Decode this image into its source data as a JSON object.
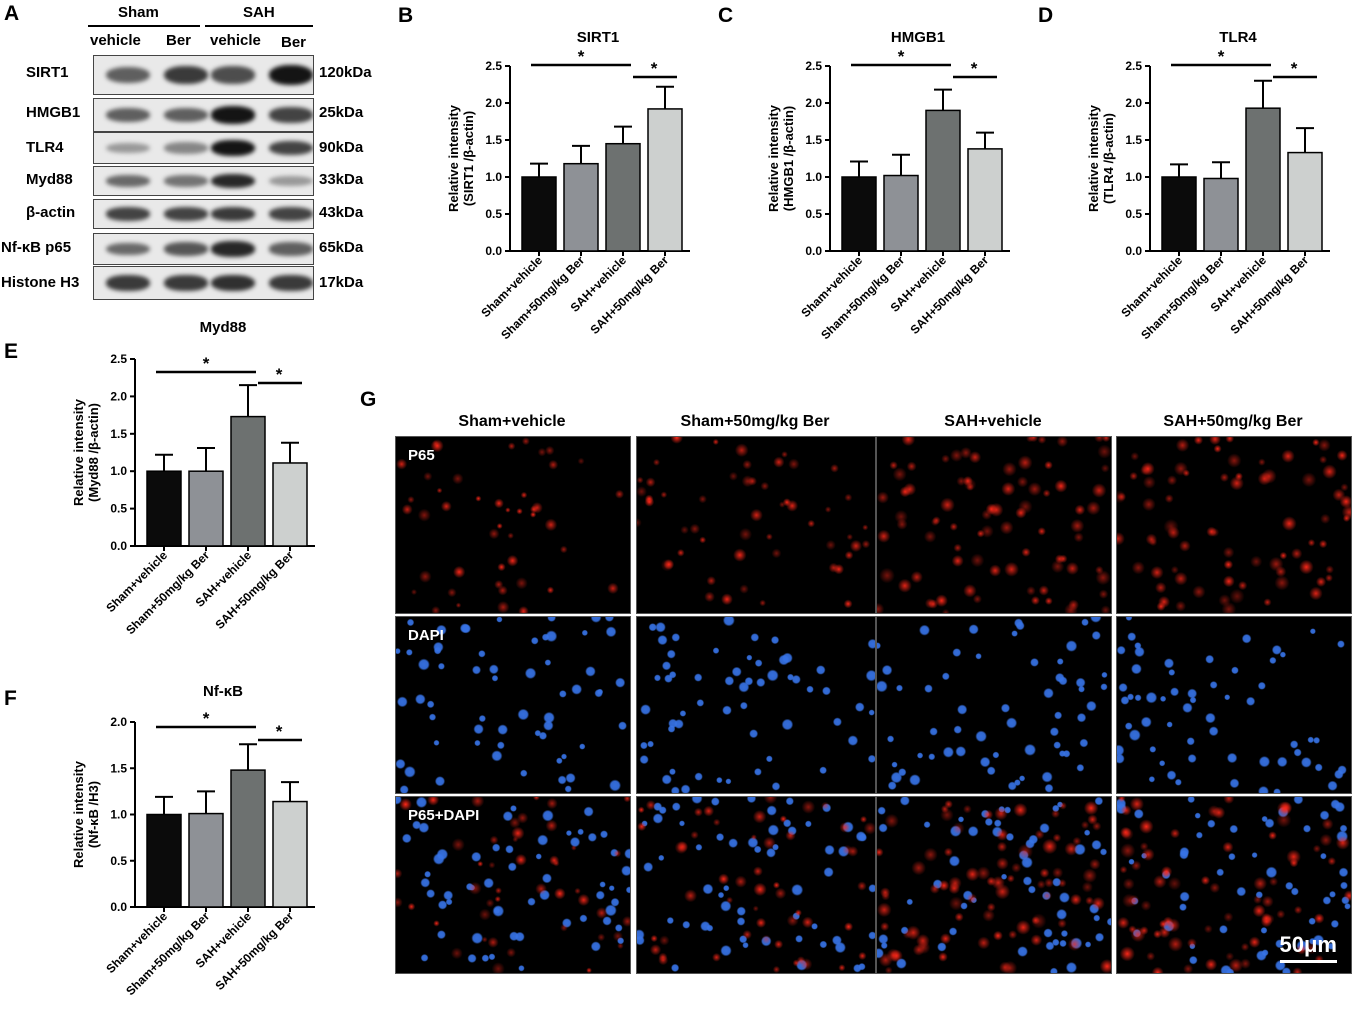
{
  "panel_letters": {
    "A": "A",
    "B": "B",
    "C": "C",
    "D": "D",
    "E": "E",
    "F": "F",
    "G": "G"
  },
  "western_blot": {
    "groups": [
      "Sham",
      "SAH"
    ],
    "lanes": [
      "vehicle",
      "Ber",
      "vehicle",
      "Ber"
    ],
    "rows": [
      {
        "protein": "SIRT1",
        "kda": "120kDa",
        "intensity": [
          0.55,
          0.75,
          0.65,
          0.95
        ]
      },
      {
        "protein": "HMGB1",
        "kda": "25kDa",
        "intensity": [
          0.55,
          0.55,
          0.95,
          0.7
        ]
      },
      {
        "protein": "TLR4",
        "kda": "90kDa",
        "intensity": [
          0.25,
          0.35,
          0.95,
          0.7
        ]
      },
      {
        "protein": "Myd88",
        "kda": "33kDa",
        "intensity": [
          0.5,
          0.45,
          0.85,
          0.25
        ]
      },
      {
        "protein": "β-actin",
        "kda": "43kDa",
        "intensity": [
          0.7,
          0.7,
          0.75,
          0.7
        ]
      },
      {
        "protein": "Nf-κB p65",
        "kda": "65kDa",
        "intensity": [
          0.5,
          0.6,
          0.85,
          0.55
        ]
      },
      {
        "protein": "Histone H3",
        "kda": "17kDa",
        "intensity": [
          0.75,
          0.75,
          0.8,
          0.75
        ]
      }
    ]
  },
  "chart_data": [
    {
      "id": "B",
      "type": "bar",
      "title": "SIRT1",
      "ylabel_line1": "Relative intensity",
      "ylabel_line2": "(SIRT1 /β-actin)",
      "categories": [
        "Sham+vehicle",
        "Sham+50mg/kg Ber",
        "SAH+vehicle",
        "SAH+50mg/kg Ber"
      ],
      "values": [
        1.0,
        1.18,
        1.45,
        1.92
      ],
      "errors": [
        0.18,
        0.24,
        0.23,
        0.3
      ],
      "ylim": [
        0,
        2.5
      ],
      "yticks": [
        "0.0",
        "0.5",
        "1.0",
        "1.5",
        "2.0",
        "2.5"
      ],
      "significance": "*"
    },
    {
      "id": "C",
      "type": "bar",
      "title": "HMGB1",
      "ylabel_line1": "Relative intensity",
      "ylabel_line2": "(HMGB1 /β-actin)",
      "categories": [
        "Sham+vehicle",
        "Sham+50mg/kg Ber",
        "SAH+vehicle",
        "SAH+50mg/kg Ber"
      ],
      "values": [
        1.0,
        1.02,
        1.9,
        1.38
      ],
      "errors": [
        0.21,
        0.28,
        0.28,
        0.22
      ],
      "ylim": [
        0,
        2.5
      ],
      "yticks": [
        "0.0",
        "0.5",
        "1.0",
        "1.5",
        "2.0",
        "2.5"
      ],
      "significance": "*"
    },
    {
      "id": "D",
      "type": "bar",
      "title": "TLR4",
      "ylabel_line1": "Relative intensity",
      "ylabel_line2": "(TLR4 /β-actin)",
      "categories": [
        "Sham+vehicle",
        "Sham+50mg/kg Ber",
        "SAH+vehicle",
        "SAH+50mg/kg Ber"
      ],
      "values": [
        1.0,
        0.98,
        1.93,
        1.33
      ],
      "errors": [
        0.17,
        0.22,
        0.37,
        0.33
      ],
      "ylim": [
        0,
        2.5
      ],
      "yticks": [
        "0.0",
        "0.5",
        "1.0",
        "1.5",
        "2.0",
        "2.5"
      ],
      "significance": "*"
    },
    {
      "id": "E",
      "type": "bar",
      "title": "Myd88",
      "ylabel_line1": "Relative intensity",
      "ylabel_line2": "(Myd88 /β-actin)",
      "categories": [
        "Sham+vehicle",
        "Sham+50mg/kg Ber",
        "SAH+vehicle",
        "SAH+50mg/kg Ber"
      ],
      "values": [
        1.0,
        1.0,
        1.73,
        1.11
      ],
      "errors": [
        0.22,
        0.31,
        0.42,
        0.27
      ],
      "ylim": [
        0,
        2.5
      ],
      "yticks": [
        "0.0",
        "0.5",
        "1.0",
        "1.5",
        "2.0",
        "2.5"
      ],
      "significance": "*"
    },
    {
      "id": "F",
      "type": "bar",
      "title": "Nf-κB",
      "ylabel_line1": "Relative intensity",
      "ylabel_line2": "(Nf-κB /H3)",
      "categories": [
        "Sham+vehicle",
        "Sham+50mg/kg Ber",
        "SAH+vehicle",
        "SAH+50mg/kg Ber"
      ],
      "values": [
        1.0,
        1.01,
        1.48,
        1.14
      ],
      "errors": [
        0.19,
        0.24,
        0.28,
        0.21
      ],
      "ylim": [
        0,
        2.0
      ],
      "yticks": [
        "0.0",
        "0.5",
        "1.0",
        "1.5",
        "2.0"
      ],
      "significance": "*"
    }
  ],
  "bar_colors": [
    "#0b0b0b",
    "#8e9196",
    "#6d7170",
    "#cdd0cf"
  ],
  "immunofluorescence": {
    "columns": [
      "Sham+vehicle",
      "Sham+50mg/kg Ber",
      "SAH+vehicle",
      "SAH+50mg/kg Ber"
    ],
    "rows": [
      "P65",
      "DAPI",
      "P65+DAPI"
    ],
    "scale_bar": "50μm",
    "p65_density": [
      0.35,
      0.45,
      0.9,
      0.8
    ],
    "red_color": "#ff2a1a",
    "blue_color": "#2f6bdc"
  }
}
